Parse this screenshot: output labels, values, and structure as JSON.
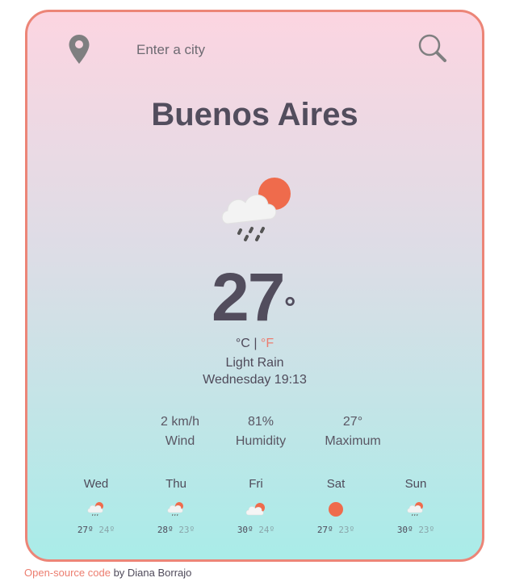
{
  "search": {
    "placeholder": "Enter a city"
  },
  "city": "Buenos Aires",
  "current": {
    "temperature": "27",
    "degree_symbol": "°",
    "unit_c": "°C",
    "separator": "|",
    "unit_f": "°F",
    "description": "Light Rain",
    "datetime": "Wednesday 19:13",
    "icon": "cloud-sun-rain-icon"
  },
  "stats": [
    {
      "value": "2 km/h",
      "label": "Wind"
    },
    {
      "value": "81%",
      "label": "Humidity"
    },
    {
      "value": "27°",
      "label": "Maximum"
    }
  ],
  "forecast": [
    {
      "day": "Wed",
      "icon": "cloud-sun-rain-icon",
      "max": "27º",
      "min": "24º"
    },
    {
      "day": "Thu",
      "icon": "cloud-sun-rain-icon",
      "max": "28º",
      "min": "23º"
    },
    {
      "day": "Fri",
      "icon": "cloud-sun-icon",
      "max": "30º",
      "min": "24º"
    },
    {
      "day": "Sat",
      "icon": "sun-icon",
      "max": "27º",
      "min": "23º"
    },
    {
      "day": "Sun",
      "icon": "cloud-sun-rain-icon",
      "max": "30º",
      "min": "23º"
    }
  ],
  "footer": {
    "link": "Open-source code",
    "text": " by Diana Borrajo"
  },
  "colors": {
    "accent": "#ec7d6f",
    "text": "#524d5d"
  }
}
